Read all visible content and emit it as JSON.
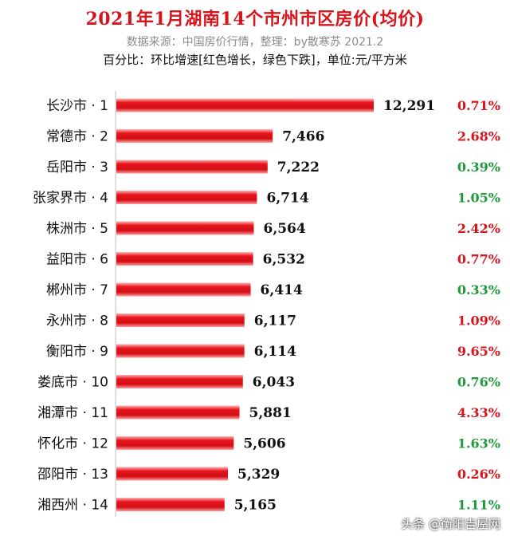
{
  "header": {
    "title": "2021年1月湖南14个市州市区房价(均价)",
    "subtitle": "数据来源：中国房价行情，整理：by散寒苏  2021.2",
    "note": "百分比：环比增速[红色增长，绿色下跌]，单位:元/平方米"
  },
  "watermark": "头条 @衡阳吉屋网",
  "colors": {
    "bar": "#e8141c",
    "increase": "#d8141c",
    "decrease": "#1f9a3a",
    "title": "#d8141c"
  },
  "chart_data": {
    "type": "bar",
    "orientation": "horizontal",
    "categories": [
      "长沙市 · 1",
      "常德市 · 2",
      "岳阳市 · 3",
      "张家界市 · 4",
      "株洲市 · 5",
      "益阳市 · 6",
      "郴州市 · 7",
      "永州市 · 8",
      "衡阳市 · 9",
      "娄底市 · 10",
      "湘潭市 · 11",
      "怀化市 · 12",
      "邵阳市 · 13",
      "湘西州 · 14"
    ],
    "values": [
      12291,
      7466,
      7222,
      6714,
      6564,
      6532,
      6414,
      6117,
      6114,
      6043,
      5881,
      5606,
      5329,
      5165
    ],
    "value_labels": [
      "12,291",
      "7,466",
      "7,222",
      "6,714",
      "6,564",
      "6,532",
      "6,414",
      "6,117",
      "6,114",
      "6,043",
      "5,881",
      "5,606",
      "5,329",
      "5,165"
    ],
    "mom_change": [
      "0.71%",
      "2.68%",
      "0.39%",
      "1.05%",
      "2.42%",
      "0.77%",
      "0.33%",
      "1.09%",
      "9.65%",
      "0.76%",
      "4.33%",
      "1.63%",
      "0.26%",
      "1.11%"
    ],
    "mom_direction": [
      "up",
      "up",
      "down",
      "down",
      "up",
      "up",
      "down",
      "up",
      "up",
      "down",
      "up",
      "down",
      "up",
      "down"
    ],
    "xlim": [
      0,
      12291
    ],
    "grid": false,
    "legend": "none"
  }
}
